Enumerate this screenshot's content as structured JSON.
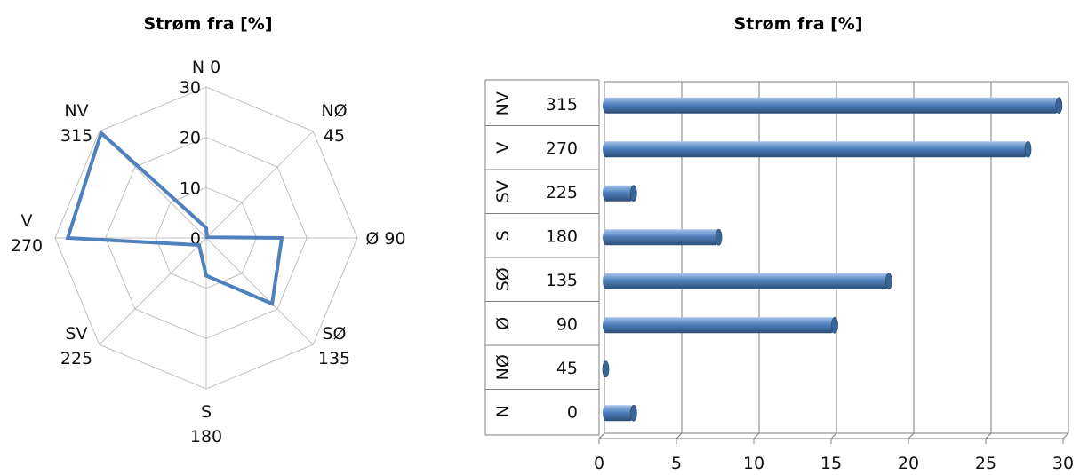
{
  "chart_data": [
    {
      "type": "radar",
      "title": "Strøm fra [%]",
      "axes": [
        {
          "name": "N",
          "deg": "0"
        },
        {
          "name": "NØ",
          "deg": "45"
        },
        {
          "name": "Ø",
          "deg": "90"
        },
        {
          "name": "SØ",
          "deg": "135"
        },
        {
          "name": "S",
          "deg": "180"
        },
        {
          "name": "SV",
          "deg": "225"
        },
        {
          "name": "V",
          "deg": "270"
        },
        {
          "name": "NV",
          "deg": "315"
        }
      ],
      "values": [
        2,
        0.2,
        15,
        18.5,
        7.5,
        2,
        27.5,
        29.5
      ],
      "rmax": 30,
      "rings": [
        0,
        10,
        20,
        30
      ],
      "ring_labels": [
        "0",
        "10",
        "20",
        "30"
      ],
      "series_color": "#4F81BD",
      "grid_color": "#BFBFBF"
    },
    {
      "type": "bar",
      "orientation": "horizontal",
      "title": "Strøm fra [%]",
      "categories": [
        {
          "name": "N",
          "deg": "0"
        },
        {
          "name": "NØ",
          "deg": "45"
        },
        {
          "name": "Ø",
          "deg": "90"
        },
        {
          "name": "SØ",
          "deg": "135"
        },
        {
          "name": "S",
          "deg": "180"
        },
        {
          "name": "SV",
          "deg": "225"
        },
        {
          "name": "V",
          "deg": "270"
        },
        {
          "name": "NV",
          "deg": "315"
        }
      ],
      "values": [
        2,
        0.2,
        15,
        18.5,
        7.5,
        2,
        27.5,
        29.5
      ],
      "xlim": [
        0,
        30
      ],
      "xticks": [
        "0",
        "5",
        "10",
        "15",
        "20",
        "25",
        "30"
      ],
      "bar_color": "#4F81BD",
      "grid": true
    }
  ]
}
